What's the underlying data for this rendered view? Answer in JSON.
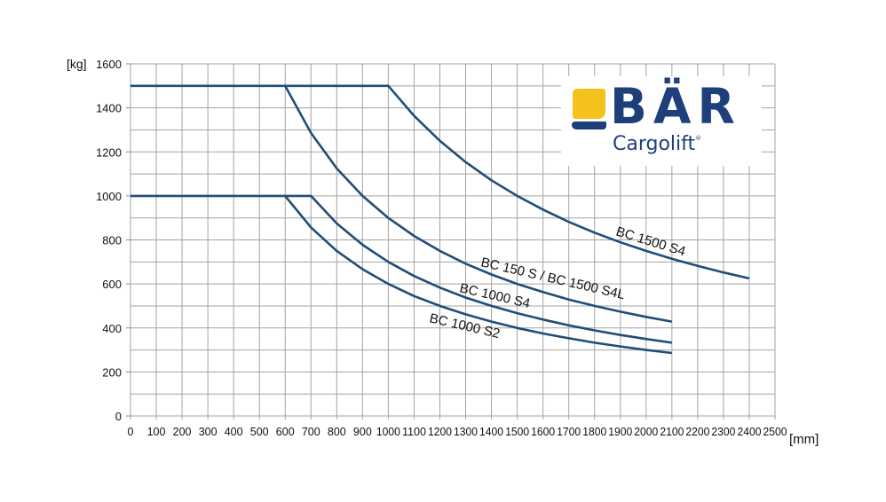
{
  "chart_data": {
    "type": "line",
    "title": "",
    "xlabel": "[mm]",
    "ylabel": "[kg]",
    "xlim": [
      0,
      2500
    ],
    "ylim": [
      0,
      1600
    ],
    "grid": true,
    "x_ticks": [
      0,
      100,
      200,
      300,
      400,
      500,
      600,
      700,
      800,
      900,
      1000,
      1100,
      1200,
      1300,
      1400,
      1500,
      1600,
      1700,
      1800,
      1900,
      2000,
      2100,
      2200,
      2300,
      2400,
      2500
    ],
    "y_ticks": [
      0,
      200,
      400,
      600,
      800,
      1000,
      1200,
      1400,
      1600
    ],
    "y_grid_step": 100,
    "line_color": "#1f4e79",
    "legend": "inline labels",
    "series": [
      {
        "name": "BC 1500 S4",
        "x": [
          0,
          1000,
          1100,
          1200,
          1300,
          1400,
          1500,
          1600,
          1700,
          1800,
          1900,
          2000,
          2100,
          2200,
          2300,
          2400
        ],
        "y": [
          1500,
          1500,
          1364,
          1250,
          1154,
          1071,
          1000,
          938,
          882,
          833,
          789,
          750,
          714,
          682,
          652,
          625
        ],
        "label_pos": {
          "x": 693,
          "y": 265,
          "rotate": 17
        }
      },
      {
        "name": "BC 150 S / BC 1500 S4L",
        "x": [
          600,
          700,
          800,
          900,
          1000,
          1100,
          1200,
          1300,
          1400,
          1500,
          1600,
          1700,
          1800,
          1900,
          2000,
          2100
        ],
        "y": [
          1500,
          1286,
          1125,
          1000,
          900,
          818,
          750,
          692,
          643,
          600,
          563,
          529,
          500,
          474,
          450,
          429
        ],
        "label_pos": {
          "x": 541,
          "y": 300,
          "rotate": 13
        }
      },
      {
        "name": "BC 1000 S4",
        "x": [
          0,
          700,
          800,
          900,
          1000,
          1100,
          1200,
          1300,
          1400,
          1500,
          1600,
          1700,
          1800,
          1900,
          2000,
          2100
        ],
        "y": [
          1000,
          1000,
          875,
          778,
          700,
          636,
          583,
          538,
          500,
          467,
          438,
          412,
          389,
          368,
          350,
          333
        ],
        "label_pos": {
          "x": 517,
          "y": 329,
          "rotate": 13
        }
      },
      {
        "name": "BC 1000 S2",
        "x": [
          600,
          700,
          800,
          900,
          1000,
          1100,
          1200,
          1300,
          1400,
          1500,
          1600,
          1700,
          1800,
          1900,
          2000,
          2100
        ],
        "y": [
          1000,
          857,
          750,
          667,
          600,
          545,
          500,
          462,
          429,
          400,
          375,
          353,
          333,
          316,
          300,
          286
        ],
        "label_pos": {
          "x": 483,
          "y": 363,
          "rotate": 13
        }
      }
    ]
  },
  "logo": {
    "brand": "BÄR",
    "subtitle": "Cargolift",
    "registered": "®",
    "primary_color": "#1d3f7a",
    "accent_color": "#f4c21c"
  }
}
